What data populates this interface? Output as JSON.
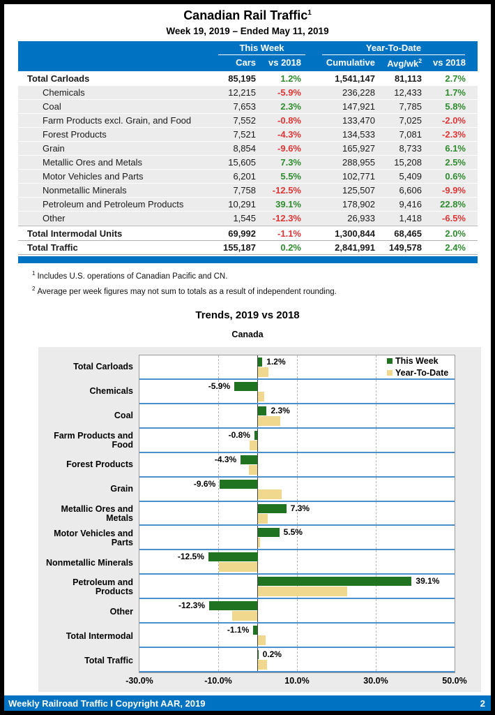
{
  "page": {
    "title": "Canadian Rail Traffic",
    "title_sup": "1",
    "subtitle": "Week 19, 2019 – Ended May 11, 2019"
  },
  "colors": {
    "header_blue": "#0072c2",
    "row_line_blue": "#4a90ce",
    "this_week_green": "#1f7321",
    "ytd_tan": "#f0d98e",
    "positive_text": "#2e8b2e",
    "negative_text": "#e03535",
    "stripe_gray": "#ececec",
    "panel_gray": "#ebebeb"
  },
  "table": {
    "group_headers": {
      "this_week": "This Week",
      "ytd": "Year-To-Date"
    },
    "columns": {
      "cars": "Cars",
      "tw_vs": "vs 2018",
      "cumulative": "Cumulative",
      "avgwk": "Avg/wk",
      "avgwk_sup": "2",
      "ytd_vs": "vs 2018"
    },
    "rows": [
      {
        "label": "Total Carloads",
        "type": "total",
        "cars": "85,195",
        "tw_vs": "1.2%",
        "cumulative": "1,541,147",
        "avgwk": "81,113",
        "ytd_vs": "2.7%"
      },
      {
        "label": "Chemicals",
        "type": "item",
        "cars": "12,215",
        "tw_vs": "-5.9%",
        "cumulative": "236,228",
        "avgwk": "12,433",
        "ytd_vs": "1.7%"
      },
      {
        "label": "Coal",
        "type": "item",
        "cars": "7,653",
        "tw_vs": "2.3%",
        "cumulative": "147,921",
        "avgwk": "7,785",
        "ytd_vs": "5.8%"
      },
      {
        "label": "Farm Products excl. Grain, and Food",
        "type": "item",
        "cars": "7,552",
        "tw_vs": "-0.8%",
        "cumulative": "133,470",
        "avgwk": "7,025",
        "ytd_vs": "-2.0%"
      },
      {
        "label": "Forest Products",
        "type": "item",
        "cars": "7,521",
        "tw_vs": "-4.3%",
        "cumulative": "134,533",
        "avgwk": "7,081",
        "ytd_vs": "-2.3%"
      },
      {
        "label": "Grain",
        "type": "item",
        "cars": "8,854",
        "tw_vs": "-9.6%",
        "cumulative": "165,927",
        "avgwk": "8,733",
        "ytd_vs": "6.1%"
      },
      {
        "label": "Metallic Ores and Metals",
        "type": "item",
        "cars": "15,605",
        "tw_vs": "7.3%",
        "cumulative": "288,955",
        "avgwk": "15,208",
        "ytd_vs": "2.5%"
      },
      {
        "label": "Motor Vehicles and Parts",
        "type": "item",
        "cars": "6,201",
        "tw_vs": "5.5%",
        "cumulative": "102,771",
        "avgwk": "5,409",
        "ytd_vs": "0.6%"
      },
      {
        "label": "Nonmetallic Minerals",
        "type": "item",
        "cars": "7,758",
        "tw_vs": "-12.5%",
        "cumulative": "125,507",
        "avgwk": "6,606",
        "ytd_vs": "-9.9%"
      },
      {
        "label": "Petroleum and Petroleum Products",
        "type": "item",
        "cars": "10,291",
        "tw_vs": "39.1%",
        "cumulative": "178,902",
        "avgwk": "9,416",
        "ytd_vs": "22.8%"
      },
      {
        "label": "Other",
        "type": "item",
        "cars": "1,545",
        "tw_vs": "-12.3%",
        "cumulative": "26,933",
        "avgwk": "1,418",
        "ytd_vs": "-6.5%"
      },
      {
        "label": "Total Intermodal Units",
        "type": "total sep",
        "cars": "69,992",
        "tw_vs": "-1.1%",
        "cumulative": "1,300,844",
        "avgwk": "68,465",
        "ytd_vs": "2.0%"
      },
      {
        "label": "Total Traffic",
        "type": "total sep last",
        "cars": "155,187",
        "tw_vs": "0.2%",
        "cumulative": "2,841,991",
        "avgwk": "149,578",
        "ytd_vs": "2.4%"
      }
    ]
  },
  "footnotes": [
    {
      "marker": "1",
      "text": "Includes U.S. operations of Canadian Pacific and CN."
    },
    {
      "marker": "2",
      "text": "Average per week figures may not sum to totals as a result of independent rounding."
    }
  ],
  "chart_data": {
    "type": "bar",
    "orientation": "horizontal",
    "title": "Trends, 2019 vs 2018",
    "subtitle": "Canada",
    "categories": [
      "Total Carloads",
      "Chemicals",
      "Coal",
      "Farm Products and Food",
      "Forest Products",
      "Grain",
      "Metallic Ores and Metals",
      "Motor Vehicles and Parts",
      "Nonmetallic Minerals",
      "Petroleum and Products",
      "Other",
      "Total Intermodal",
      "Total Traffic"
    ],
    "series": [
      {
        "name": "This Week",
        "color": "#1f7321",
        "values": [
          1.2,
          -5.9,
          2.3,
          -0.8,
          -4.3,
          -9.6,
          7.3,
          5.5,
          -12.5,
          39.1,
          -12.3,
          -1.1,
          0.2
        ]
      },
      {
        "name": "Year-To-Date",
        "color": "#f0d98e",
        "values": [
          2.7,
          1.7,
          5.8,
          -2.0,
          -2.3,
          6.1,
          2.5,
          0.6,
          -9.9,
          22.8,
          -6.5,
          2.0,
          2.4
        ]
      }
    ],
    "bar_labels": [
      "1.2%",
      "-5.9%",
      "2.3%",
      "-0.8%",
      "-4.3%",
      "-9.6%",
      "7.3%",
      "5.5%",
      "-12.5%",
      "39.1%",
      "-12.3%",
      "-1.1%",
      "0.2%"
    ],
    "xlim": [
      -30,
      50
    ],
    "x_ticks": [
      -30,
      -10,
      10,
      30,
      50
    ],
    "x_tick_labels": [
      "-30.0%",
      "-10.0%",
      "10.0%",
      "30.0%",
      "50.0%"
    ],
    "dashed_gridlines": [
      -10,
      10,
      30
    ],
    "zero_line": 0,
    "legend_position": "top-right",
    "grid": true
  },
  "footer": {
    "text": "Weekly Railroad Traffic I Copyright AAR, 2019",
    "page_number": "2"
  }
}
